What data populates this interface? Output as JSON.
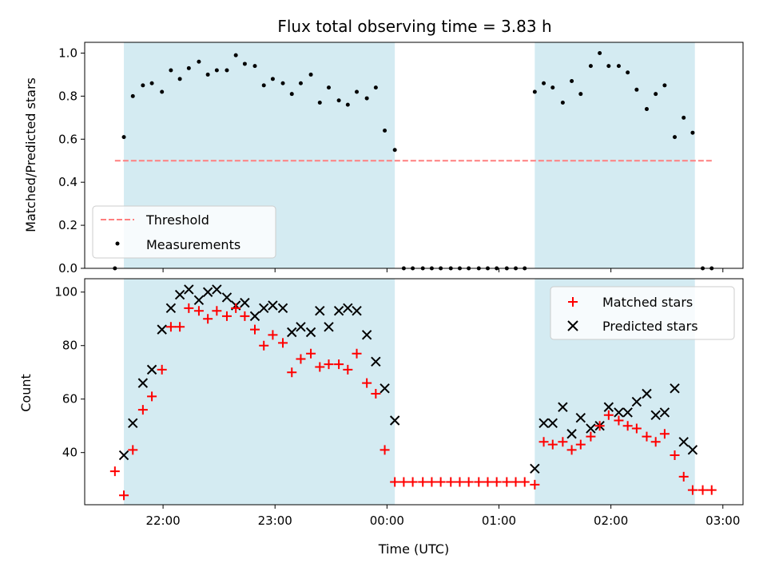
{
  "chart_data": {
    "type": "scatter",
    "title": "Flux total observing time = 3.83 h",
    "xlabel": "Time (UTC)",
    "x_ticks": [
      "22:00",
      "23:00",
      "00:00",
      "01:00",
      "02:00",
      "03:00"
    ],
    "xlim_hours": [
      -2.7,
      3.18
    ],
    "shaded_intervals_hours": [
      [
        -2.35,
        0.07
      ],
      [
        1.32,
        2.75
      ]
    ],
    "colors": {
      "threshold": "#ff7f7f",
      "measurements": "#000000",
      "matched": "#ff0000",
      "predicted": "#000000",
      "shade": "#add8e6"
    },
    "top": {
      "ylabel": "Matched/Predicted stars",
      "ylim": [
        0,
        1.05
      ],
      "yticks": [
        "0.0",
        "0.2",
        "0.4",
        "0.6",
        "0.8",
        "1.0"
      ],
      "threshold": {
        "name": "Threshold",
        "value": 0.5,
        "x_range_hours": [
          -2.43,
          2.92
        ]
      },
      "measurements": {
        "name": "Measurements",
        "points": [
          [
            -2.43,
            0.0
          ],
          [
            -2.35,
            0.61
          ],
          [
            -2.27,
            0.8
          ],
          [
            -2.18,
            0.85
          ],
          [
            -2.1,
            0.86
          ],
          [
            -2.01,
            0.82
          ],
          [
            -1.93,
            0.92
          ],
          [
            -1.85,
            0.88
          ],
          [
            -1.77,
            0.93
          ],
          [
            -1.68,
            0.96
          ],
          [
            -1.6,
            0.9
          ],
          [
            -1.52,
            0.92
          ],
          [
            -1.43,
            0.92
          ],
          [
            -1.35,
            0.99
          ],
          [
            -1.27,
            0.95
          ],
          [
            -1.18,
            0.94
          ],
          [
            -1.1,
            0.85
          ],
          [
            -1.02,
            0.88
          ],
          [
            -0.93,
            0.86
          ],
          [
            -0.85,
            0.81
          ],
          [
            -0.77,
            0.86
          ],
          [
            -0.68,
            0.9
          ],
          [
            -0.6,
            0.77
          ],
          [
            -0.52,
            0.84
          ],
          [
            -0.43,
            0.78
          ],
          [
            -0.35,
            0.76
          ],
          [
            -0.27,
            0.82
          ],
          [
            -0.18,
            0.79
          ],
          [
            -0.1,
            0.84
          ],
          [
            -0.02,
            0.64
          ],
          [
            0.07,
            0.55
          ],
          [
            0.15,
            0.0
          ],
          [
            0.23,
            0.0
          ],
          [
            0.32,
            0.0
          ],
          [
            0.4,
            0.0
          ],
          [
            0.48,
            0.0
          ],
          [
            0.57,
            0.0
          ],
          [
            0.65,
            0.0
          ],
          [
            0.73,
            0.0
          ],
          [
            0.82,
            0.0
          ],
          [
            0.9,
            0.0
          ],
          [
            0.98,
            0.0
          ],
          [
            1.07,
            0.0
          ],
          [
            1.15,
            0.0
          ],
          [
            1.23,
            0.0
          ],
          [
            1.32,
            0.82
          ],
          [
            1.4,
            0.86
          ],
          [
            1.48,
            0.84
          ],
          [
            1.57,
            0.77
          ],
          [
            1.65,
            0.87
          ],
          [
            1.73,
            0.81
          ],
          [
            1.82,
            0.94
          ],
          [
            1.9,
            1.0
          ],
          [
            1.98,
            0.94
          ],
          [
            2.07,
            0.94
          ],
          [
            2.15,
            0.91
          ],
          [
            2.23,
            0.83
          ],
          [
            2.32,
            0.74
          ],
          [
            2.4,
            0.81
          ],
          [
            2.48,
            0.85
          ],
          [
            2.57,
            0.61
          ],
          [
            2.65,
            0.7
          ],
          [
            2.73,
            0.63
          ],
          [
            2.82,
            0.0
          ],
          [
            2.9,
            0.0
          ]
        ]
      }
    },
    "bottom": {
      "ylabel": "Count",
      "ylim": [
        20.5,
        105
      ],
      "yticks": [
        "40",
        "60",
        "80",
        "100"
      ],
      "series": [
        {
          "name": "Matched stars",
          "points": [
            [
              -2.43,
              33
            ],
            [
              -2.35,
              24
            ],
            [
              -2.27,
              41
            ],
            [
              -2.18,
              56
            ],
            [
              -2.1,
              61
            ],
            [
              -2.01,
              71
            ],
            [
              -1.93,
              87
            ],
            [
              -1.85,
              87
            ],
            [
              -1.77,
              94
            ],
            [
              -1.68,
              93
            ],
            [
              -1.6,
              90
            ],
            [
              -1.52,
              93
            ],
            [
              -1.43,
              91
            ],
            [
              -1.35,
              94
            ],
            [
              -1.27,
              91
            ],
            [
              -1.18,
              86
            ],
            [
              -1.1,
              80
            ],
            [
              -1.02,
              84
            ],
            [
              -0.93,
              81
            ],
            [
              -0.85,
              70
            ],
            [
              -0.77,
              75
            ],
            [
              -0.68,
              77
            ],
            [
              -0.6,
              72
            ],
            [
              -0.52,
              73
            ],
            [
              -0.43,
              73
            ],
            [
              -0.35,
              71
            ],
            [
              -0.27,
              77
            ],
            [
              -0.18,
              66
            ],
            [
              -0.1,
              62
            ],
            [
              -0.02,
              41
            ],
            [
              0.07,
              29
            ],
            [
              0.15,
              29
            ],
            [
              0.23,
              29
            ],
            [
              0.32,
              29
            ],
            [
              0.4,
              29
            ],
            [
              0.48,
              29
            ],
            [
              0.57,
              29
            ],
            [
              0.65,
              29
            ],
            [
              0.73,
              29
            ],
            [
              0.82,
              29
            ],
            [
              0.9,
              29
            ],
            [
              0.98,
              29
            ],
            [
              1.07,
              29
            ],
            [
              1.15,
              29
            ],
            [
              1.23,
              29
            ],
            [
              1.32,
              28
            ],
            [
              1.4,
              44
            ],
            [
              1.48,
              43
            ],
            [
              1.57,
              44
            ],
            [
              1.65,
              41
            ],
            [
              1.73,
              43
            ],
            [
              1.82,
              46
            ],
            [
              1.9,
              50
            ],
            [
              1.98,
              54
            ],
            [
              2.07,
              52
            ],
            [
              2.15,
              50
            ],
            [
              2.23,
              49
            ],
            [
              2.32,
              46
            ],
            [
              2.4,
              44
            ],
            [
              2.48,
              47
            ],
            [
              2.57,
              39
            ],
            [
              2.65,
              31
            ],
            [
              2.73,
              26
            ],
            [
              2.82,
              26
            ],
            [
              2.9,
              26
            ]
          ]
        },
        {
          "name": "Predicted stars",
          "points": [
            [
              -2.35,
              39
            ],
            [
              -2.27,
              51
            ],
            [
              -2.18,
              66
            ],
            [
              -2.1,
              71
            ],
            [
              -2.01,
              86
            ],
            [
              -1.93,
              94
            ],
            [
              -1.85,
              99
            ],
            [
              -1.77,
              101
            ],
            [
              -1.68,
              97
            ],
            [
              -1.6,
              100
            ],
            [
              -1.52,
              101
            ],
            [
              -1.43,
              98
            ],
            [
              -1.35,
              95
            ],
            [
              -1.27,
              96
            ],
            [
              -1.18,
              91
            ],
            [
              -1.1,
              94
            ],
            [
              -1.02,
              95
            ],
            [
              -0.93,
              94
            ],
            [
              -0.85,
              85
            ],
            [
              -0.77,
              87
            ],
            [
              -0.68,
              85
            ],
            [
              -0.6,
              93
            ],
            [
              -0.52,
              87
            ],
            [
              -0.43,
              93
            ],
            [
              -0.35,
              94
            ],
            [
              -0.27,
              93
            ],
            [
              -0.18,
              84
            ],
            [
              -0.1,
              74
            ],
            [
              -0.02,
              64
            ],
            [
              0.07,
              52
            ],
            [
              1.32,
              34
            ],
            [
              1.4,
              51
            ],
            [
              1.48,
              51
            ],
            [
              1.57,
              57
            ],
            [
              1.65,
              47
            ],
            [
              1.73,
              53
            ],
            [
              1.82,
              49
            ],
            [
              1.9,
              50
            ],
            [
              1.98,
              57
            ],
            [
              2.07,
              55
            ],
            [
              2.15,
              55
            ],
            [
              2.23,
              59
            ],
            [
              2.32,
              62
            ],
            [
              2.4,
              54
            ],
            [
              2.48,
              55
            ],
            [
              2.57,
              64
            ],
            [
              2.65,
              44
            ],
            [
              2.73,
              41
            ]
          ]
        }
      ]
    }
  }
}
